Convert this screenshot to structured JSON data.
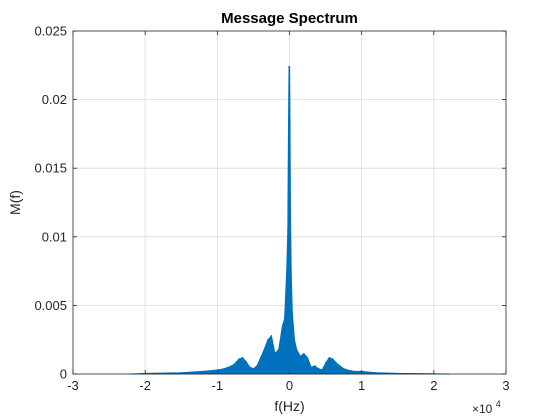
{
  "chart_data": {
    "type": "line",
    "title": "Message Spectrum",
    "xlabel": "f(Hz)",
    "ylabel": "M(f)",
    "x_exponent_label": "×10",
    "x_exponent_power": "4",
    "xlim": [
      -30000,
      30000
    ],
    "ylim": [
      0,
      0.025
    ],
    "xticks": [
      -30000,
      -20000,
      -10000,
      0,
      10000,
      20000,
      30000
    ],
    "xtick_labels": [
      "-3",
      "-2",
      "-1",
      "0",
      "1",
      "2",
      "3"
    ],
    "yticks": [
      0,
      0.005,
      0.01,
      0.015,
      0.02,
      0.025
    ],
    "ytick_labels": [
      "0",
      "0.005",
      "0.01",
      "0.015",
      "0.02",
      "0.025"
    ],
    "grid": true,
    "series": [
      {
        "color": "#0072BD",
        "x": [
          -22050,
          -20000,
          -15000,
          -12000,
          -10000,
          -9000,
          -8000,
          -7500,
          -7000,
          -6500,
          -6000,
          -5500,
          -5000,
          -4500,
          -4000,
          -3500,
          -3000,
          -2500,
          -2000,
          -1500,
          -1000,
          -700,
          -400,
          -250,
          -150,
          -80,
          -30,
          30,
          80,
          150,
          250,
          400,
          700,
          1000,
          1500,
          2000,
          2500,
          3000,
          3500,
          4000,
          4500,
          5000,
          5500,
          6000,
          6500,
          7000,
          7500,
          8000,
          9000,
          10000,
          12000,
          15000,
          20000,
          22050
        ],
        "y": [
          0.0,
          5e-05,
          0.0001,
          0.0002,
          0.0003,
          0.0004,
          0.0006,
          0.0008,
          0.0011,
          0.0012,
          0.0009,
          0.0005,
          0.0004,
          0.0006,
          0.0012,
          0.0018,
          0.0025,
          0.0028,
          0.0015,
          0.0018,
          0.0035,
          0.004,
          0.0075,
          0.0105,
          0.0185,
          0.0224,
          0.0155,
          0.0224,
          0.0185,
          0.012,
          0.0075,
          0.0045,
          0.0025,
          0.0018,
          0.0013,
          0.0015,
          0.0012,
          0.0005,
          0.0006,
          0.0004,
          0.0003,
          0.0008,
          0.0012,
          0.0011,
          0.0008,
          0.0006,
          0.0004,
          0.0003,
          0.0002,
          0.0002,
          0.0001,
          5e-05,
          3e-05,
          0.0
        ]
      }
    ]
  }
}
